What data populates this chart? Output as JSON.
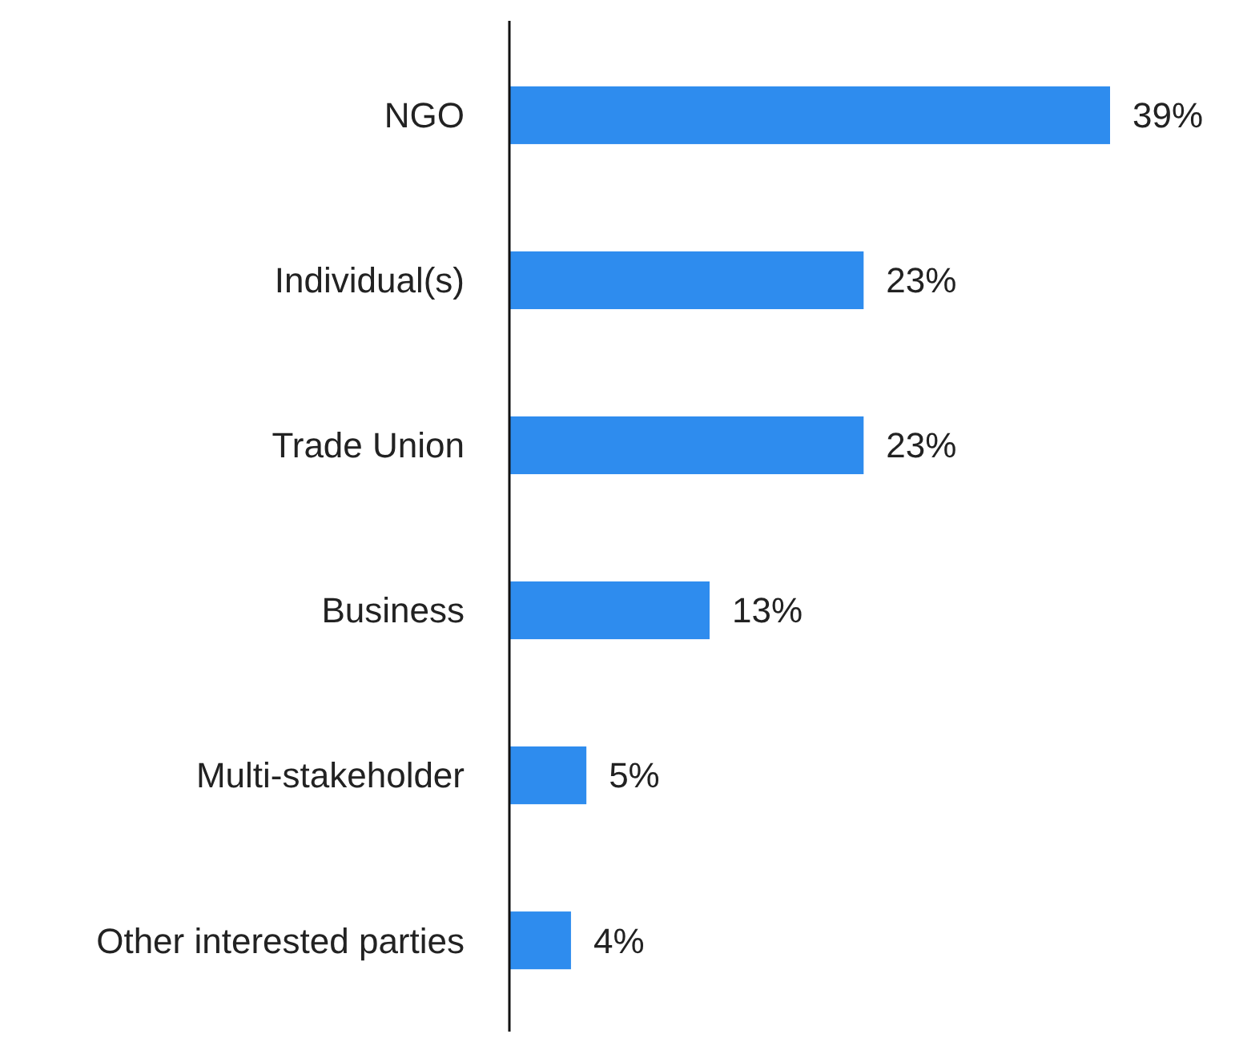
{
  "chart_data": {
    "type": "bar",
    "orientation": "horizontal",
    "categories": [
      "NGO",
      "Individual(s)",
      "Trade Union",
      "Business",
      "Multi-stakeholder",
      "Other interested parties"
    ],
    "values": [
      39,
      23,
      23,
      13,
      5,
      4
    ],
    "value_labels": [
      "39%",
      "23%",
      "23%",
      "13%",
      "5%",
      "4%"
    ],
    "color": "#2e8cee"
  }
}
